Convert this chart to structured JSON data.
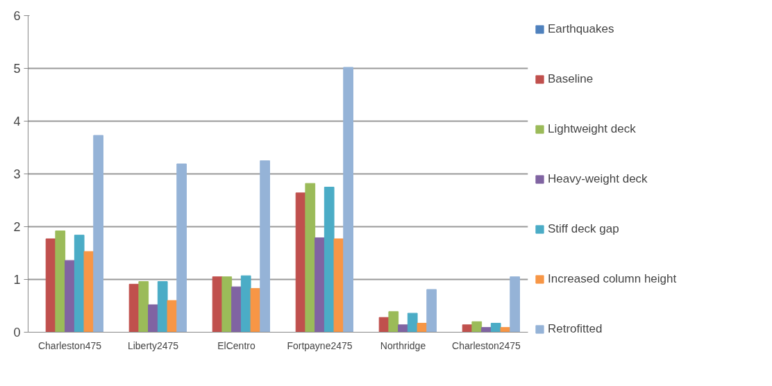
{
  "chart_data": {
    "type": "bar",
    "categories": [
      "Charleston475",
      "Liberty2475",
      "ElCentro",
      "Fortpayne2475",
      "Northridge",
      "Charleston2475"
    ],
    "series": [
      {
        "name": "Earthquakes",
        "color": "#4f81bd",
        "values": [
          null,
          null,
          null,
          null,
          null,
          null
        ]
      },
      {
        "name": "Baseline",
        "color": "#c0504d",
        "values": [
          1.77,
          0.91,
          1.05,
          2.64,
          0.28,
          0.14
        ]
      },
      {
        "name": "Lightweight deck",
        "color": "#9bbb59",
        "values": [
          1.92,
          0.96,
          1.05,
          2.82,
          0.39,
          0.2
        ]
      },
      {
        "name": "Heavy-weight deck",
        "color": "#8064a2",
        "values": [
          1.36,
          0.52,
          0.86,
          1.79,
          0.14,
          0.09
        ]
      },
      {
        "name": "Stiff deck gap",
        "color": "#4bacc6",
        "values": [
          1.84,
          0.96,
          1.07,
          2.75,
          0.36,
          0.17
        ]
      },
      {
        "name": "Increased column height",
        "color": "#f79646",
        "values": [
          1.53,
          0.6,
          0.83,
          1.77,
          0.17,
          0.09
        ]
      },
      {
        "name": "Retrofitted",
        "color": "#95b3d7",
        "values": [
          3.73,
          3.19,
          3.25,
          5.02,
          0.81,
          1.05
        ]
      }
    ],
    "ylim": [
      0,
      6
    ],
    "yticks": [
      0,
      1,
      2,
      3,
      4,
      5,
      6
    ],
    "grid": "y",
    "legend": "right"
  }
}
